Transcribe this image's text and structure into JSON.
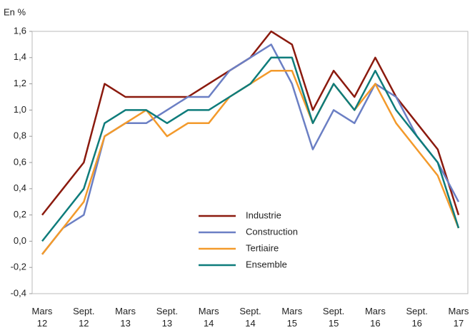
{
  "chart_data": {
    "type": "line",
    "y_label": "En %",
    "categories": [
      "Mars 12",
      null,
      "Sept. 12",
      null,
      "Mars 13",
      null,
      "Sept. 13",
      null,
      "Mars 14",
      null,
      "Sept. 14",
      null,
      "Mars 15",
      null,
      "Sept. 15",
      null,
      "Mars 16",
      null,
      "Sept. 16",
      null,
      "Mars 17"
    ],
    "series": [
      {
        "name": "Industrie",
        "color": "#8b1a0e",
        "values": [
          0.2,
          0.4,
          0.6,
          1.2,
          1.1,
          1.1,
          1.1,
          1.1,
          1.2,
          1.3,
          1.4,
          1.6,
          1.5,
          1.0,
          1.3,
          1.1,
          1.4,
          1.1,
          0.9,
          0.7,
          0.2
        ]
      },
      {
        "name": "Construction",
        "color": "#6b7fc4",
        "values": [
          -0.1,
          0.1,
          0.2,
          0.8,
          0.9,
          0.9,
          1.0,
          1.1,
          1.1,
          1.3,
          1.4,
          1.5,
          1.2,
          0.7,
          1.0,
          0.9,
          1.2,
          1.1,
          0.8,
          0.6,
          0.3
        ]
      },
      {
        "name": "Tertiaire",
        "color": "#f39a2b",
        "values": [
          -0.1,
          0.1,
          0.3,
          0.8,
          0.9,
          1.0,
          0.8,
          0.9,
          0.9,
          1.1,
          1.2,
          1.3,
          1.3,
          0.9,
          1.2,
          1.0,
          1.2,
          0.9,
          0.7,
          0.5,
          0.1
        ]
      },
      {
        "name": "Ensemble",
        "color": "#0e7c7b",
        "values": [
          0.0,
          0.2,
          0.4,
          0.9,
          1.0,
          1.0,
          0.9,
          1.0,
          1.0,
          1.1,
          1.2,
          1.4,
          1.4,
          0.9,
          1.2,
          1.0,
          1.3,
          1.0,
          0.8,
          0.6,
          0.1
        ]
      }
    ],
    "ylim": [
      -0.4,
      1.6
    ],
    "yticks": [
      {
        "value": -0.4,
        "label": "-0,4"
      },
      {
        "value": -0.2,
        "label": "-0,2"
      },
      {
        "value": 0,
        "label": "0,0"
      },
      {
        "value": 0.2,
        "label": "0,2"
      },
      {
        "value": 0.4,
        "label": "0,4"
      },
      {
        "value": 0.6,
        "label": "0,6"
      },
      {
        "value": 0.8,
        "label": "0,8"
      },
      {
        "value": 1.0,
        "label": "1,0"
      },
      {
        "value": 1.2,
        "label": "1,2"
      },
      {
        "value": 1.4,
        "label": "1,4"
      },
      {
        "value": 1.6,
        "label": "1,6"
      }
    ],
    "grid": false,
    "legend": "lower center"
  }
}
